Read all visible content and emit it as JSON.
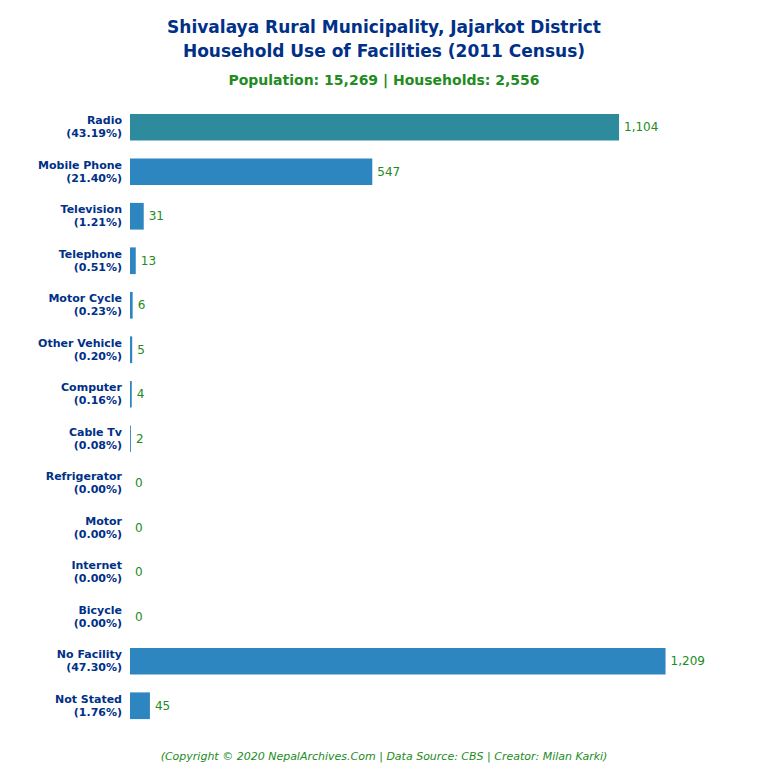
{
  "chart_data": {
    "type": "bar",
    "orientation": "horizontal",
    "title": "Shivalaya Rural Municipality, Jajarkot District\nHousehold Use of Facilities (2011 Census)",
    "subtitle": "Population: 15,269 | Households: 2,556",
    "annotations": [
      "(Copyright © 2020 NepalArchives.Com | Data Source: CBS | Creator: Milan Karki)"
    ],
    "categories": [
      "Not Stated\n(1.76%)",
      "No Facility\n(47.30%)",
      "Bicycle\n(0.00%)",
      "Internet\n(0.00%)",
      "Motor\n(0.00%)",
      "Refrigerator\n(0.00%)",
      "Cable Tv\n(0.08%)",
      "Computer\n(0.16%)",
      "Other Vehicle\n(0.20%)",
      "Motor Cycle\n(0.23%)",
      "Telephone\n(0.51%)",
      "Television\n(1.21%)",
      "Mobile Phone\n(21.40%)",
      "Radio\n(43.19%)"
    ],
    "values": [
      45,
      1209,
      0,
      0,
      0,
      0,
      2,
      4,
      5,
      6,
      13,
      31,
      547,
      1104
    ],
    "value_labels": [
      "45",
      "1,209",
      "0",
      "0",
      "0",
      "0",
      "2",
      "4",
      "5",
      "6",
      "13",
      "31",
      "547",
      "1,104"
    ],
    "colors": [
      "#2e86c1",
      "#2e86c1",
      "#2e86c1",
      "#2e86c1",
      "#2e86c1",
      "#2e86c1",
      "#2e86c1",
      "#2e86c1",
      "#2e86c1",
      "#2e86c1",
      "#2e86c1",
      "#2e86c1",
      "#2e86c1",
      "#2e8b9e"
    ],
    "xlim": [
      0,
      1350
    ],
    "data_labels": true,
    "tick_labels": "y",
    "grid": false
  }
}
